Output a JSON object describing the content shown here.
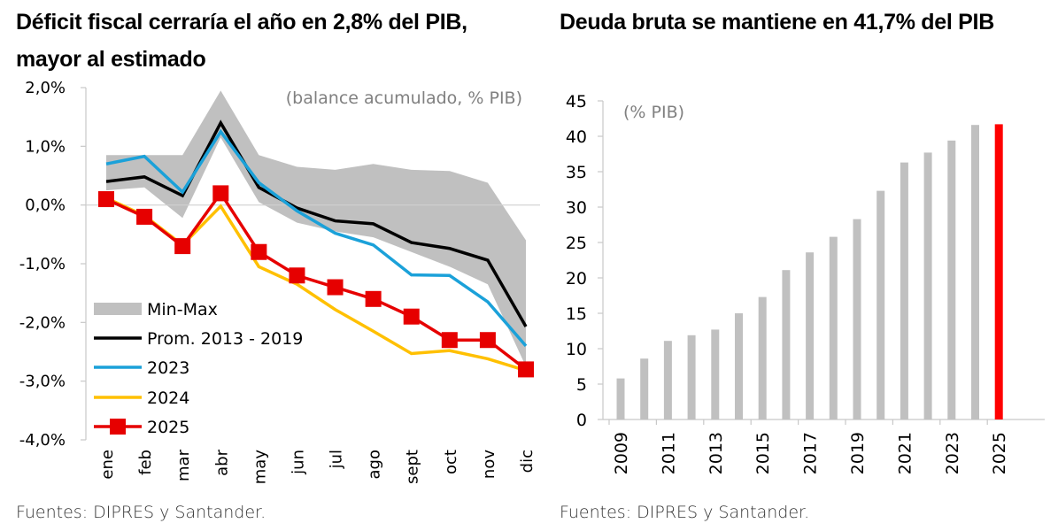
{
  "left_title": "Déficit fiscal cerraría el año en 2,8% del PIB, mayor al estimado",
  "right_title": "Deuda bruta se mantiene en 41,7% del PIB",
  "left_source": "Fuentes: DIPRES y Santander.",
  "right_source": "Fuentes: DIPRES y Santander.",
  "colors": {
    "minmax": "#c0c0c0",
    "avg": "#000000",
    "y2023": "#1ba1d9",
    "y2024": "#ffc000",
    "y2025": "#e60000",
    "bar": "#c0c0c0",
    "bar_highlight": "#ff0000",
    "axis": "#c8c8c8",
    "note": "#808080"
  },
  "chart_data": [
    {
      "type": "line",
      "title": "Déficit fiscal cerraría el año en 2,8% del PIB, mayor al estimado",
      "annotation": "(balance acumulado, % PIB)",
      "xlabel": "",
      "ylabel": "",
      "categories": [
        "ene",
        "feb",
        "mar",
        "abr",
        "may",
        "jun",
        "jul",
        "ago",
        "sept",
        "oct",
        "nov",
        "dic"
      ],
      "ylim": [
        -4.0,
        2.0
      ],
      "yticks": [
        2.0,
        1.0,
        0.0,
        -1.0,
        -2.0,
        -3.0,
        -4.0
      ],
      "ytick_labels": [
        "2,0%",
        "1,0%",
        "0,0%",
        "-1,0%",
        "-2,0%",
        "-3,0%",
        "-4,0%"
      ],
      "grid": false,
      "zero_line": true,
      "legend_position": "bottom-left",
      "band": {
        "name": "Min-Max",
        "min": [
          0.25,
          0.3,
          -0.22,
          1.15,
          0.05,
          -0.3,
          -0.45,
          -0.55,
          -0.8,
          -1.05,
          -1.35,
          -2.75
        ],
        "max": [
          0.85,
          0.85,
          0.85,
          1.95,
          0.85,
          0.65,
          0.6,
          0.7,
          0.6,
          0.58,
          0.38,
          -0.6
        ]
      },
      "series": [
        {
          "name": "Prom. 2013 - 2019",
          "key": "avg",
          "marker": "none",
          "values": [
            0.4,
            0.48,
            0.16,
            1.4,
            0.3,
            -0.05,
            -0.27,
            -0.32,
            -0.64,
            -0.74,
            -0.94,
            -2.07
          ]
        },
        {
          "name": "2023",
          "key": "y2023",
          "marker": "none",
          "values": [
            0.7,
            0.83,
            0.22,
            1.25,
            0.38,
            -0.1,
            -0.48,
            -0.68,
            -1.19,
            -1.2,
            -1.65,
            -2.4
          ]
        },
        {
          "name": "2024",
          "key": "y2024",
          "marker": "none",
          "values": [
            0.12,
            -0.18,
            -0.68,
            -0.02,
            -1.05,
            -1.35,
            -1.78,
            -2.15,
            -2.53,
            -2.48,
            -2.62,
            -2.82
          ]
        },
        {
          "name": "2025",
          "key": "y2025",
          "marker": "square",
          "values": [
            0.1,
            -0.2,
            -0.7,
            0.2,
            -0.8,
            -1.2,
            -1.4,
            -1.6,
            -1.9,
            -2.3,
            -2.3,
            -2.8
          ]
        }
      ],
      "legend": [
        {
          "label": "Min-Max",
          "key": "minmax",
          "style": "band"
        },
        {
          "label": "Prom. 2013 - 2019",
          "key": "avg",
          "style": "line"
        },
        {
          "label": "2023",
          "key": "y2023",
          "style": "line"
        },
        {
          "label": "2024",
          "key": "y2024",
          "style": "line"
        },
        {
          "label": "2025",
          "key": "y2025",
          "style": "line-square"
        }
      ]
    },
    {
      "type": "bar",
      "title": "Deuda bruta se mantiene en 41,7% del PIB",
      "annotation": "(% PIB)",
      "xlabel": "",
      "ylabel": "",
      "categories": [
        "2009",
        "2010",
        "2011",
        "2012",
        "2013",
        "2014",
        "2015",
        "2016",
        "2017",
        "2018",
        "2019",
        "2020",
        "2021",
        "2022",
        "2023",
        "2024",
        "2025"
      ],
      "xtick_labels": [
        "2009",
        "2011",
        "2013",
        "2015",
        "2017",
        "2019",
        "2021",
        "2023",
        "2025"
      ],
      "values": [
        5.8,
        8.6,
        11.1,
        11.9,
        12.7,
        15.0,
        17.3,
        21.1,
        23.6,
        25.8,
        28.3,
        32.3,
        36.3,
        37.7,
        39.4,
        41.6,
        41.7
      ],
      "highlight_category": "2025",
      "ylim": [
        0,
        45
      ],
      "yticks": [
        0,
        5,
        10,
        15,
        20,
        25,
        30,
        35,
        40,
        45
      ],
      "grid": false,
      "legend_position": "none"
    }
  ]
}
